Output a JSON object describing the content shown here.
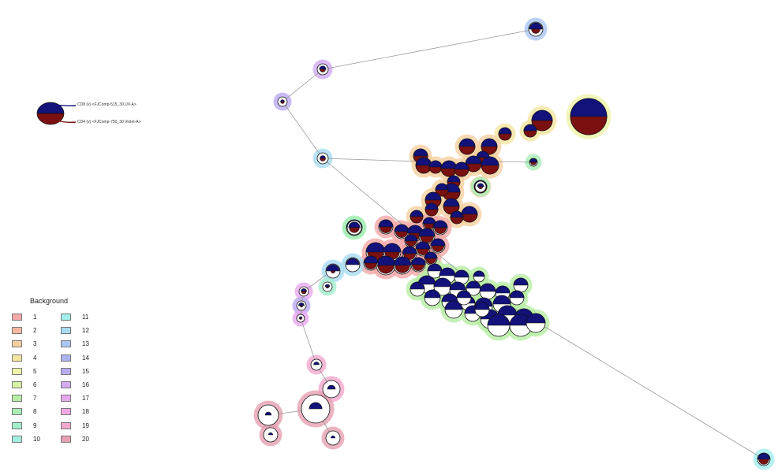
{
  "marker_legend": {
    "top_label": "CD8 (v) <FJComp-515_30 UV-A>",
    "bottom_label": "CD4 (v) <FJComp-750_30 Violet-A>",
    "top_color": "#12127a",
    "bottom_color": "#7a1010"
  },
  "background_legend": {
    "title": "Background",
    "items": [
      {
        "label": "1",
        "color": "#f4a8a8"
      },
      {
        "label": "2",
        "color": "#f6b89e"
      },
      {
        "label": "3",
        "color": "#f5cfa0"
      },
      {
        "label": "4",
        "color": "#f3e6a0"
      },
      {
        "label": "5",
        "color": "#eef4a8"
      },
      {
        "label": "6",
        "color": "#d6f2a4"
      },
      {
        "label": "7",
        "color": "#b6eea4"
      },
      {
        "label": "8",
        "color": "#a6eeb6"
      },
      {
        "label": "9",
        "color": "#a4eecb"
      },
      {
        "label": "10",
        "color": "#a2eede"
      },
      {
        "label": "11",
        "color": "#a2eeec"
      },
      {
        "label": "12",
        "color": "#a8dcf2"
      },
      {
        "label": "13",
        "color": "#aac6f2"
      },
      {
        "label": "14",
        "color": "#aab2f2"
      },
      {
        "label": "15",
        "color": "#baaaf2"
      },
      {
        "label": "16",
        "color": "#d2aaf2"
      },
      {
        "label": "17",
        "color": "#e8a8f0"
      },
      {
        "label": "18",
        "color": "#f2a8e2"
      },
      {
        "label": "19",
        "color": "#f2a8cc"
      },
      {
        "label": "20",
        "color": "#e6a0b2"
      }
    ]
  }
}
